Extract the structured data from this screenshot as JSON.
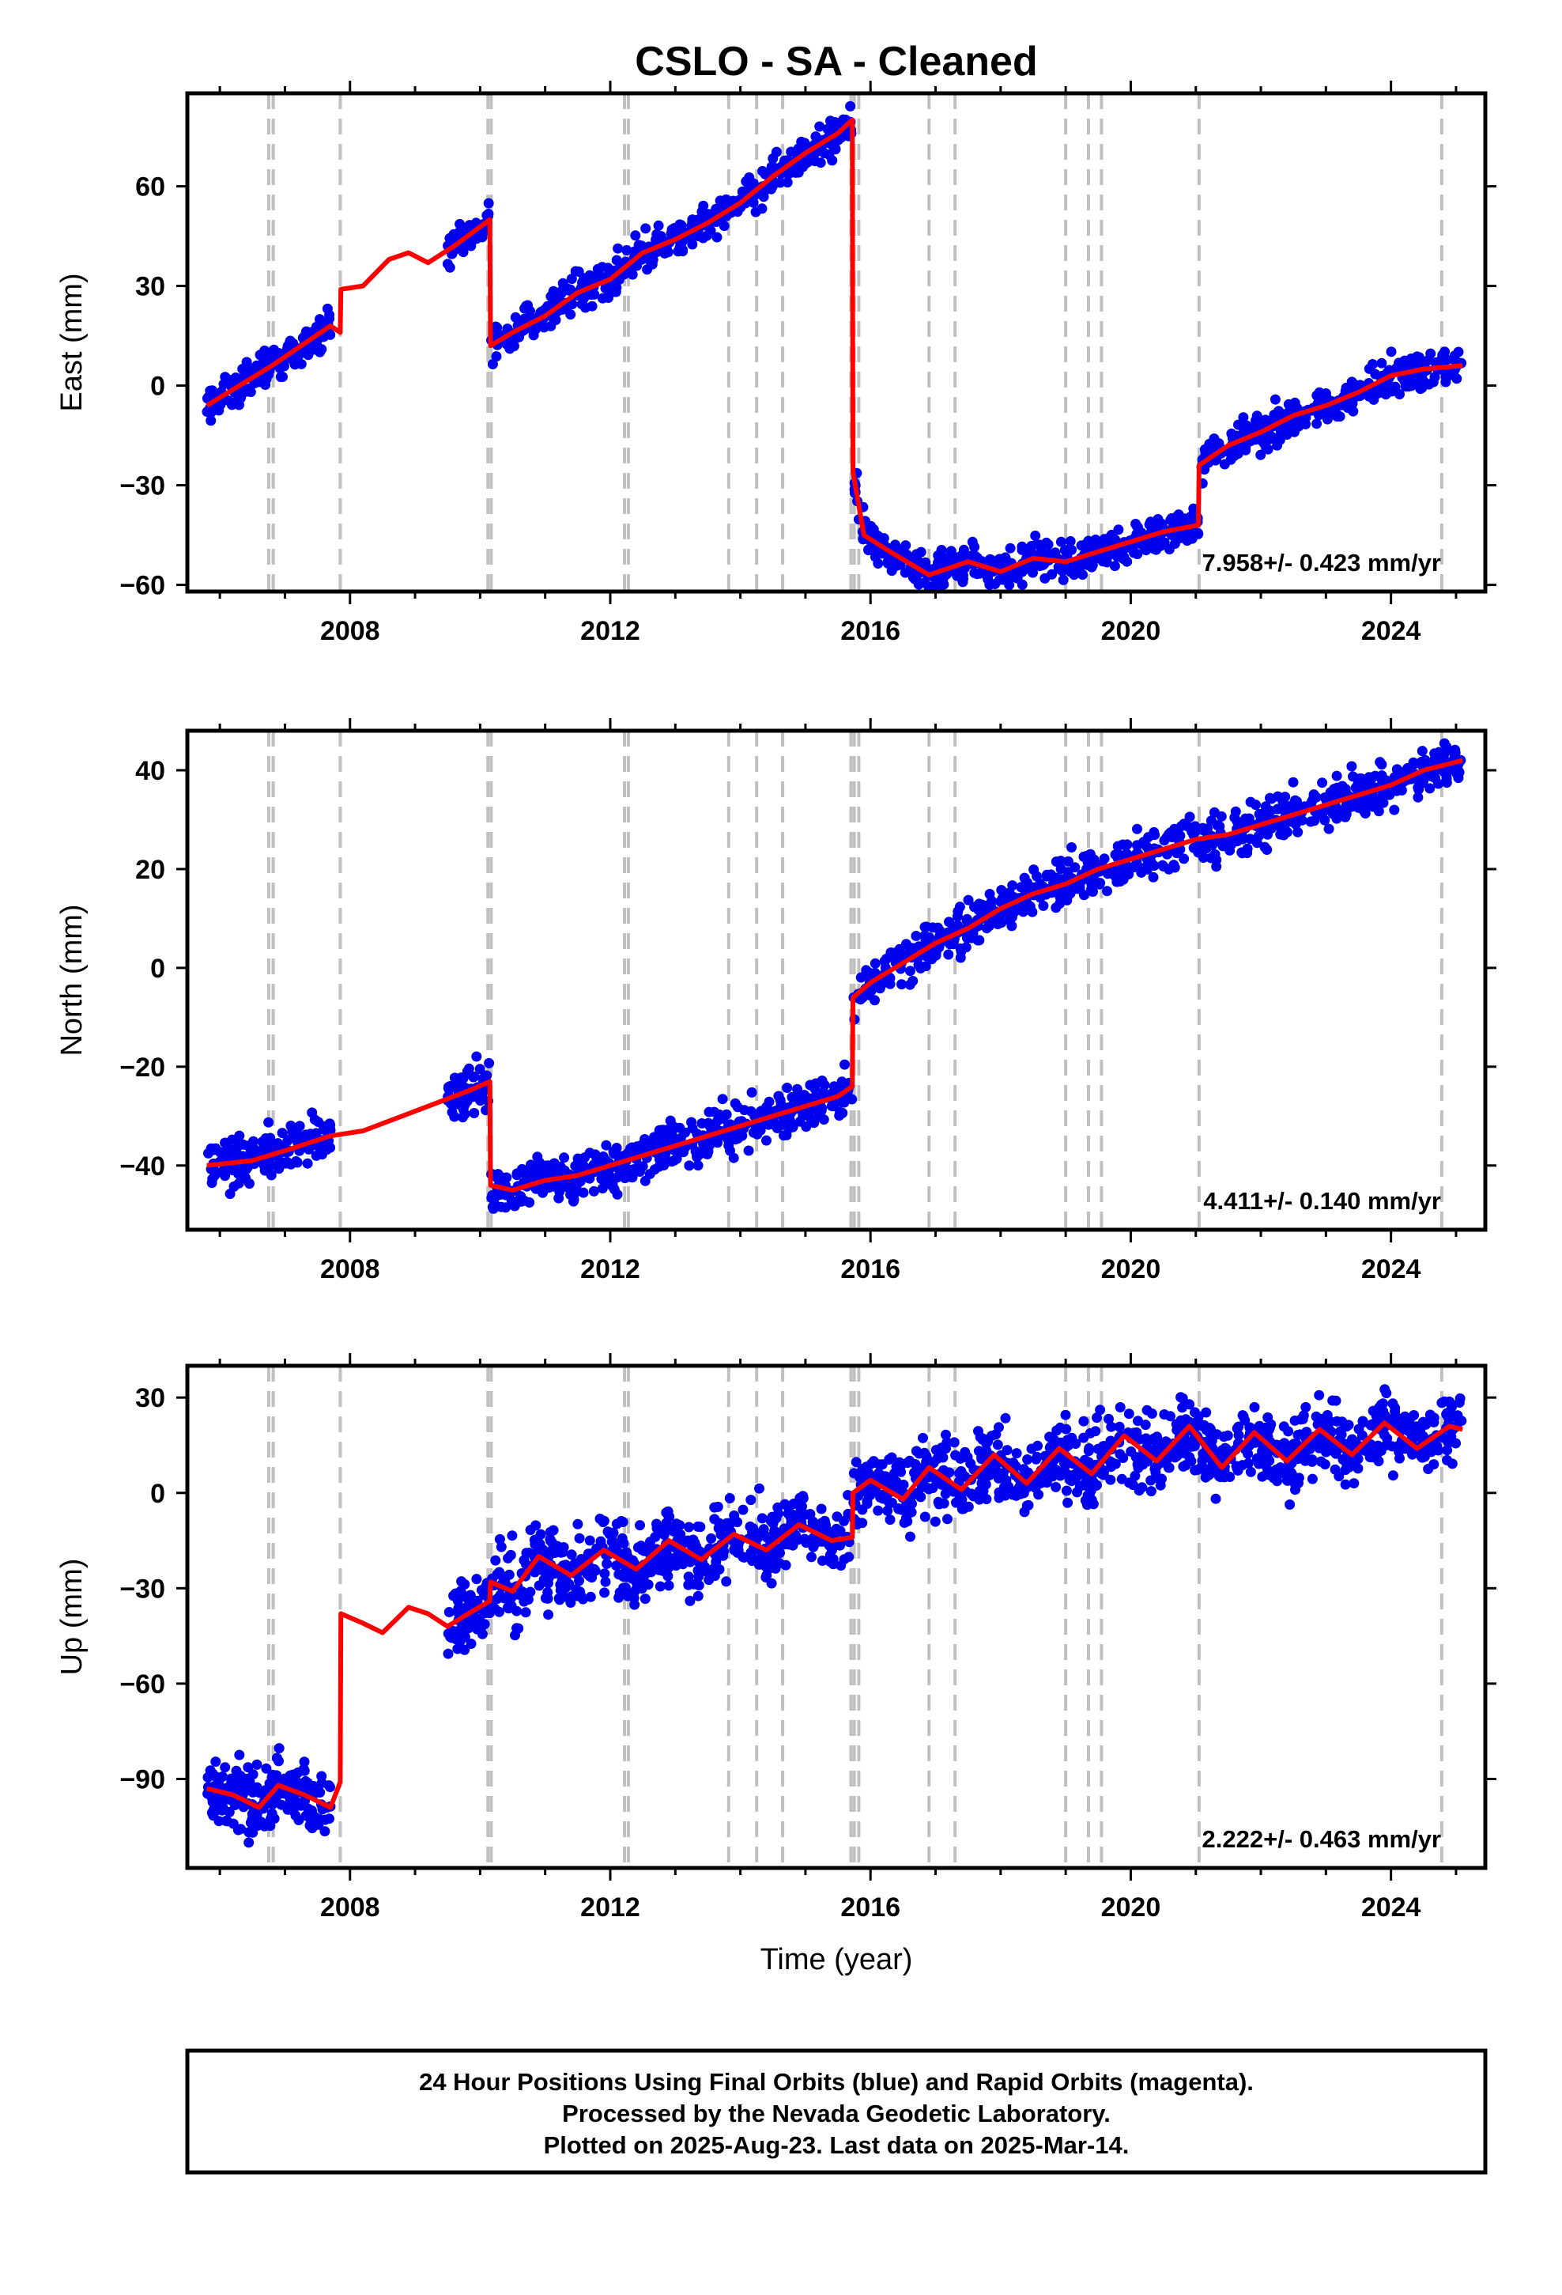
{
  "chart_data": {
    "type": "scatter",
    "title": "CSLO  - SA - Cleaned",
    "xlabel": "Time (year)",
    "x_range": [
      2005.5,
      2025.45
    ],
    "x_ticks": [
      2008,
      2012,
      2016,
      2020,
      2024
    ],
    "events": [
      2006.75,
      2006.82,
      2007.85,
      2010.12,
      2010.17,
      2012.22,
      2012.28,
      2013.82,
      2014.25,
      2014.65,
      2015.7,
      2015.75,
      2015.82,
      2016.9,
      2017.3,
      2019.0,
      2019.35,
      2019.55,
      2021.05,
      2024.78
    ],
    "series_colors": {
      "data": "#0000ee",
      "model": "#ff0000",
      "events": "#c0c0c0"
    },
    "panels": [
      {
        "ylabel": "East (mm)",
        "ylim": [
          -62,
          88
        ],
        "y_ticks": [
          60,
          30,
          0,
          -30,
          -60
        ],
        "y_tick_labels": [
          "60",
          "30",
          "0",
          "−30",
          "−60"
        ],
        "rate": "7.958+/- 0.423 mm/yr",
        "model": [
          [
            2005.8,
            -6
          ],
          [
            2006.8,
            6
          ],
          [
            2007.7,
            18
          ],
          [
            2007.85,
            16
          ],
          [
            2007.86,
            29
          ],
          [
            2008.2,
            30
          ],
          [
            2008.6,
            38
          ],
          [
            2008.9,
            40
          ],
          [
            2009.2,
            37
          ],
          [
            2009.6,
            42
          ],
          [
            2010.15,
            50
          ],
          [
            2010.16,
            12
          ],
          [
            2010.5,
            16
          ],
          [
            2011.0,
            21
          ],
          [
            2011.5,
            28
          ],
          [
            2012.0,
            32
          ],
          [
            2012.5,
            40
          ],
          [
            2013.0,
            44
          ],
          [
            2013.5,
            49
          ],
          [
            2014.0,
            55
          ],
          [
            2014.5,
            63
          ],
          [
            2015.0,
            70
          ],
          [
            2015.5,
            76
          ],
          [
            2015.72,
            80
          ],
          [
            2015.73,
            -26
          ],
          [
            2015.9,
            -45
          ],
          [
            2016.3,
            -50
          ],
          [
            2016.9,
            -57
          ],
          [
            2017.5,
            -53
          ],
          [
            2018.0,
            -56
          ],
          [
            2018.5,
            -52
          ],
          [
            2019.0,
            -53
          ],
          [
            2019.5,
            -50
          ],
          [
            2020.0,
            -47
          ],
          [
            2020.5,
            -44
          ],
          [
            2021.04,
            -42
          ],
          [
            2021.05,
            -24
          ],
          [
            2021.5,
            -18
          ],
          [
            2022.0,
            -14
          ],
          [
            2022.5,
            -9
          ],
          [
            2023.0,
            -6
          ],
          [
            2023.5,
            -2
          ],
          [
            2024.0,
            3
          ],
          [
            2024.5,
            5
          ],
          [
            2025.1,
            6
          ]
        ],
        "data_segments": [
          {
            "t0": 2005.8,
            "t1": 2007.7,
            "spread": 2.5,
            "n": 180
          },
          {
            "t0": 2009.5,
            "t1": 2010.15,
            "spread": 2.5,
            "n": 60
          },
          {
            "t0": 2010.17,
            "t1": 2015.72,
            "spread": 2.8,
            "n": 450
          },
          {
            "t0": 2015.74,
            "t1": 2021.04,
            "spread": 2.8,
            "n": 430
          },
          {
            "t0": 2021.06,
            "t1": 2025.1,
            "spread": 2.6,
            "n": 330
          }
        ]
      },
      {
        "ylabel": "North (mm)",
        "ylim": [
          -53,
          48
        ],
        "y_ticks": [
          40,
          20,
          0,
          -20,
          -40
        ],
        "y_tick_labels": [
          "40",
          "20",
          "0",
          "−20",
          "−40"
        ],
        "rate": "4.411+/- 0.140 mm/yr",
        "model": [
          [
            2005.8,
            -40
          ],
          [
            2006.5,
            -39
          ],
          [
            2007.0,
            -37
          ],
          [
            2007.7,
            -34
          ],
          [
            2008.2,
            -33
          ],
          [
            2008.6,
            -31
          ],
          [
            2009.0,
            -29
          ],
          [
            2009.4,
            -27
          ],
          [
            2009.8,
            -25
          ],
          [
            2010.15,
            -23
          ],
          [
            2010.16,
            -44
          ],
          [
            2010.5,
            -45
          ],
          [
            2011.0,
            -43
          ],
          [
            2011.5,
            -42
          ],
          [
            2012.0,
            -40
          ],
          [
            2012.5,
            -38
          ],
          [
            2013.0,
            -36
          ],
          [
            2013.5,
            -34
          ],
          [
            2014.0,
            -32
          ],
          [
            2014.5,
            -30
          ],
          [
            2015.0,
            -28
          ],
          [
            2015.5,
            -26
          ],
          [
            2015.72,
            -24
          ],
          [
            2015.73,
            -6
          ],
          [
            2016.0,
            -3
          ],
          [
            2016.5,
            1
          ],
          [
            2017.0,
            5
          ],
          [
            2017.5,
            8
          ],
          [
            2018.0,
            12
          ],
          [
            2018.5,
            15
          ],
          [
            2019.0,
            17
          ],
          [
            2019.5,
            20
          ],
          [
            2020.0,
            22
          ],
          [
            2020.5,
            24
          ],
          [
            2021.0,
            26
          ],
          [
            2021.5,
            27
          ],
          [
            2022.0,
            29
          ],
          [
            2022.5,
            31
          ],
          [
            2023.0,
            33
          ],
          [
            2023.5,
            35
          ],
          [
            2024.0,
            37
          ],
          [
            2024.5,
            40
          ],
          [
            2025.1,
            42
          ]
        ],
        "data_segments": [
          {
            "t0": 2005.8,
            "t1": 2007.7,
            "spread": 2.4,
            "n": 180
          },
          {
            "t0": 2009.5,
            "t1": 2010.15,
            "spread": 2.2,
            "n": 60
          },
          {
            "t0": 2010.17,
            "t1": 2015.72,
            "spread": 2.4,
            "n": 450
          },
          {
            "t0": 2015.74,
            "t1": 2025.1,
            "spread": 2.3,
            "n": 760
          }
        ]
      },
      {
        "ylabel": "Up (mm)",
        "ylim": [
          -118,
          40
        ],
        "y_ticks": [
          30,
          0,
          -30,
          -60,
          -90
        ],
        "y_tick_labels": [
          "30",
          "0",
          "−30",
          "−60",
          "−90"
        ],
        "rate": "2.222+/- 0.463 mm/yr",
        "model": [
          [
            2005.8,
            -93
          ],
          [
            2006.2,
            -95
          ],
          [
            2006.6,
            -99
          ],
          [
            2006.9,
            -92
          ],
          [
            2007.3,
            -95
          ],
          [
            2007.7,
            -99
          ],
          [
            2007.85,
            -91
          ],
          [
            2007.86,
            -38
          ],
          [
            2008.2,
            -41
          ],
          [
            2008.5,
            -44
          ],
          [
            2008.9,
            -36
          ],
          [
            2009.2,
            -38
          ],
          [
            2009.5,
            -42
          ],
          [
            2009.9,
            -37
          ],
          [
            2010.15,
            -34
          ],
          [
            2010.16,
            -28
          ],
          [
            2010.5,
            -31
          ],
          [
            2010.9,
            -20
          ],
          [
            2011.4,
            -26
          ],
          [
            2011.9,
            -18
          ],
          [
            2012.4,
            -24
          ],
          [
            2012.9,
            -15
          ],
          [
            2013.4,
            -21
          ],
          [
            2013.9,
            -13
          ],
          [
            2014.4,
            -18
          ],
          [
            2014.9,
            -10
          ],
          [
            2015.4,
            -15
          ],
          [
            2015.72,
            -14
          ],
          [
            2015.73,
            0
          ],
          [
            2016.0,
            4
          ],
          [
            2016.5,
            -2
          ],
          [
            2016.9,
            8
          ],
          [
            2017.4,
            1
          ],
          [
            2017.9,
            12
          ],
          [
            2018.4,
            3
          ],
          [
            2018.9,
            14
          ],
          [
            2019.4,
            6
          ],
          [
            2019.9,
            18
          ],
          [
            2020.4,
            10
          ],
          [
            2020.9,
            21
          ],
          [
            2021.4,
            8
          ],
          [
            2021.9,
            19
          ],
          [
            2022.4,
            10
          ],
          [
            2022.9,
            20
          ],
          [
            2023.4,
            12
          ],
          [
            2023.9,
            22
          ],
          [
            2024.4,
            14
          ],
          [
            2024.9,
            21
          ],
          [
            2025.1,
            20
          ]
        ],
        "data_segments": [
          {
            "t0": 2005.8,
            "t1": 2007.7,
            "spread": 5.5,
            "n": 200
          },
          {
            "t0": 2009.5,
            "t1": 2010.15,
            "spread": 5.0,
            "n": 70
          },
          {
            "t0": 2010.17,
            "t1": 2015.72,
            "spread": 6.0,
            "n": 520
          },
          {
            "t0": 2015.74,
            "t1": 2025.1,
            "spread": 6.0,
            "n": 900
          }
        ]
      }
    ]
  },
  "footer": {
    "line1": "24 Hour Positions Using Final Orbits (blue) and Rapid Orbits (magenta).",
    "line2": "Processed by the Nevada Geodetic Laboratory.",
    "line3": "Plotted on 2025-Aug-23. Last data on 2025-Mar-14."
  }
}
